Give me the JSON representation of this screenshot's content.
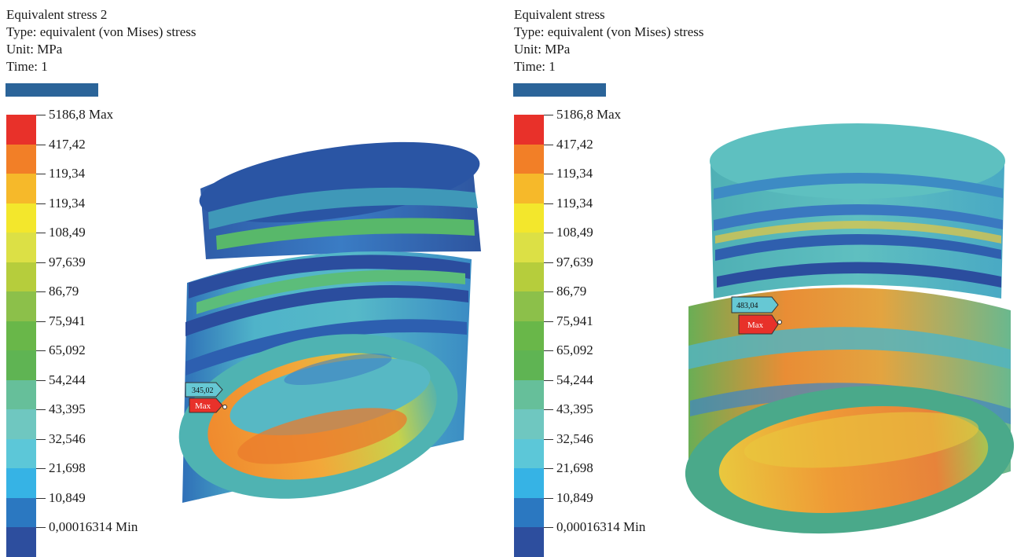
{
  "legend_labels": [
    "5186,8 Max",
    "417,42",
    "119,34",
    "119,34",
    "108,49",
    "97,639",
    "86,79",
    "75,941",
    "65,092",
    "54,244",
    "43,395",
    "32,546",
    "21,698",
    "10,849",
    "0,00016314 Min"
  ],
  "legend_colors": [
    "#e8312a",
    "#f27f27",
    "#f6b92a",
    "#f3e72c",
    "#dce045",
    "#b6cd3c",
    "#8cc04a",
    "#69b749",
    "#5fb453",
    "#66bf9a",
    "#6fc7c0",
    "#5cc7d8",
    "#36b3e5",
    "#2b78c1",
    "#2d4e9e"
  ],
  "panels": [
    {
      "title": "Equivalent stress 2",
      "type_line": "Type: equivalent (von Mises) stress",
      "unit_line": "Unit: MPa",
      "time_line": "Time: 1",
      "probe_value": "345,02",
      "max_tag": "Max"
    },
    {
      "title": "Equivalent stress",
      "type_line": "Type: equivalent (von Mises) stress",
      "unit_line": "Unit: MPa",
      "time_line": "Time: 1",
      "probe_value": "483,04",
      "max_tag": "Max"
    }
  ]
}
